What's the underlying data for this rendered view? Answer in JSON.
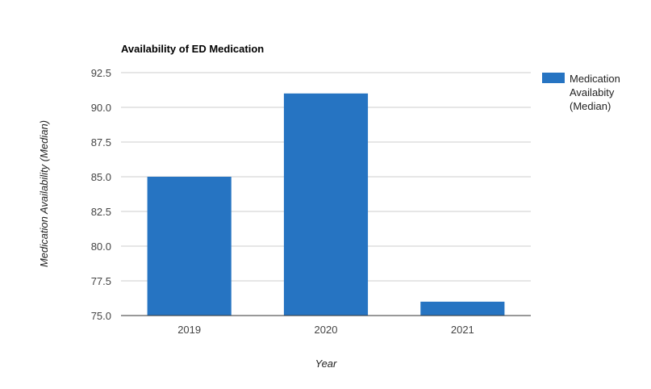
{
  "chart_data": {
    "type": "bar",
    "title": "Availability of ED Medication",
    "xlabel": "Year",
    "ylabel": "Medication Availability (Median)",
    "categories": [
      "2019",
      "2020",
      "2021"
    ],
    "series": [
      {
        "name": "Medication Availabity (Median)",
        "values": [
          85.0,
          91.0,
          76.0
        ]
      }
    ],
    "ylim": [
      75.0,
      92.5
    ],
    "yticks": [
      "75.0",
      "77.5",
      "80.0",
      "82.5",
      "85.0",
      "87.5",
      "90.0",
      "92.5"
    ],
    "grid": true,
    "legend_position": "right",
    "legend_lines": [
      "Medication",
      "Availabity",
      "(Median)"
    ],
    "colors": {
      "bar": "#2674c2"
    }
  }
}
